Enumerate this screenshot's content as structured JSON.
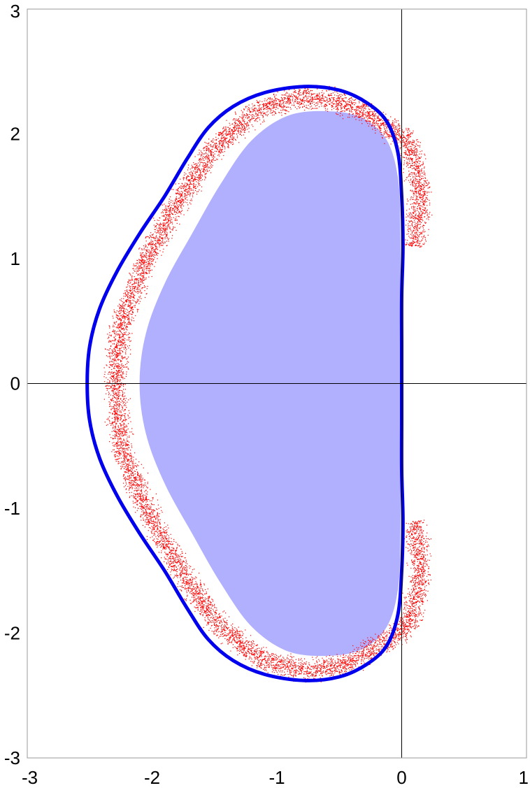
{
  "chart_data": {
    "type": "scatter",
    "title": "",
    "xlabel": "",
    "ylabel": "",
    "xlim": [
      -3,
      1
    ],
    "ylim": [
      -3,
      3
    ],
    "xticks": [
      -3,
      -2,
      -1,
      0,
      1
    ],
    "yticks": [
      -3,
      -2,
      -1,
      0,
      1,
      2,
      3
    ],
    "xtick_labels": [
      "-3",
      "-2",
      "-1",
      "0",
      "1"
    ],
    "ytick_labels": [
      "-3",
      "-2",
      "-1",
      "0",
      "1",
      "2",
      "3"
    ],
    "grid": false,
    "legend": "none",
    "axes_lines": {
      "x": 0,
      "y": 0
    },
    "colors": {
      "boundary": "#0000ee",
      "fill": "#b0b0ff",
      "scatter": "#ff0000",
      "axis": "#000000",
      "frame": "#999999"
    },
    "series": [
      {
        "type": "closed-curve",
        "points": [
          [
            -2.52,
            0.0
          ],
          [
            -2.5,
            0.3
          ],
          [
            -2.42,
            0.6
          ],
          [
            -2.28,
            0.9
          ],
          [
            -2.1,
            1.2
          ],
          [
            -1.9,
            1.5
          ],
          [
            -1.72,
            1.8
          ],
          [
            -1.55,
            2.05
          ],
          [
            -1.35,
            2.22
          ],
          [
            -1.1,
            2.33
          ],
          [
            -0.78,
            2.38
          ],
          [
            -0.5,
            2.35
          ],
          [
            -0.28,
            2.25
          ],
          [
            -0.12,
            2.1
          ],
          [
            -0.03,
            1.85
          ],
          [
            0.0,
            1.5
          ],
          [
            0.01,
            1.1
          ],
          [
            0.0,
            0.7
          ],
          [
            0.0,
            0.3
          ],
          [
            0.0,
            0.0
          ],
          [
            0.0,
            -0.3
          ],
          [
            0.0,
            -0.7
          ],
          [
            0.01,
            -1.1
          ],
          [
            0.0,
            -1.5
          ],
          [
            -0.03,
            -1.85
          ],
          [
            -0.12,
            -2.1
          ],
          [
            -0.28,
            -2.25
          ],
          [
            -0.5,
            -2.35
          ],
          [
            -0.78,
            -2.38
          ],
          [
            -1.1,
            -2.33
          ],
          [
            -1.35,
            -2.22
          ],
          [
            -1.55,
            -2.05
          ],
          [
            -1.72,
            -1.8
          ],
          [
            -1.9,
            -1.5
          ],
          [
            -2.1,
            -1.2
          ],
          [
            -2.28,
            -0.9
          ],
          [
            -2.42,
            -0.6
          ],
          [
            -2.5,
            -0.3
          ]
        ]
      },
      {
        "type": "filled-region",
        "points": [
          [
            -2.1,
            0.0
          ],
          [
            -2.05,
            0.4
          ],
          [
            -1.9,
            0.8
          ],
          [
            -1.68,
            1.2
          ],
          [
            -1.45,
            1.6
          ],
          [
            -1.2,
            1.95
          ],
          [
            -0.9,
            2.15
          ],
          [
            -0.55,
            2.18
          ],
          [
            -0.3,
            2.12
          ],
          [
            -0.12,
            1.95
          ],
          [
            -0.03,
            1.65
          ],
          [
            -0.01,
            1.2
          ],
          [
            -0.01,
            0.6
          ],
          [
            -0.01,
            0.0
          ],
          [
            -0.01,
            -0.6
          ],
          [
            -0.01,
            -1.2
          ],
          [
            -0.03,
            -1.65
          ],
          [
            -0.12,
            -1.95
          ],
          [
            -0.3,
            -2.12
          ],
          [
            -0.55,
            -2.18
          ],
          [
            -0.9,
            -2.15
          ],
          [
            -1.2,
            -1.95
          ],
          [
            -1.45,
            -1.6
          ],
          [
            -1.68,
            -1.2
          ],
          [
            -1.9,
            -0.8
          ],
          [
            -2.05,
            -0.4
          ]
        ]
      },
      {
        "type": "scatter-band",
        "description_points": [
          [
            -2.3,
            0.0
          ],
          [
            -2.25,
            0.5
          ],
          [
            -2.05,
            1.0
          ],
          [
            -1.8,
            1.45
          ],
          [
            -1.5,
            1.9
          ],
          [
            -1.15,
            2.2
          ],
          [
            -0.8,
            2.3
          ],
          [
            -0.45,
            2.25
          ],
          [
            -0.2,
            2.1
          ],
          [
            0.05,
            1.95
          ],
          [
            0.15,
            1.55
          ],
          [
            0.1,
            1.1
          ],
          [
            0.1,
            -1.1
          ],
          [
            0.15,
            -1.55
          ],
          [
            0.05,
            -1.95
          ],
          [
            -0.2,
            -2.1
          ],
          [
            -0.45,
            -2.25
          ],
          [
            -0.8,
            -2.3
          ],
          [
            -1.15,
            -2.2
          ],
          [
            -1.5,
            -1.9
          ],
          [
            -1.8,
            -1.45
          ],
          [
            -2.05,
            -1.0
          ],
          [
            -2.25,
            -0.5
          ]
        ]
      }
    ]
  }
}
